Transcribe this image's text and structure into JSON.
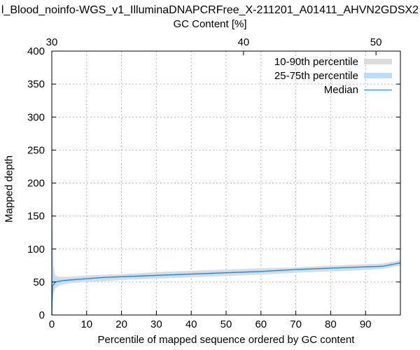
{
  "chart_data": {
    "type": "area",
    "title": "l_Blood_noinfo-WGS_v1_IlluminaDNAPCRFree_X-211201_A01411_AHVN2GDSX2",
    "xlabel": "Percentile of mapped sequence ordered by GC content",
    "ylabel": "Mapped depth",
    "x2label": "GC Content [%]",
    "xlim": [
      0,
      100
    ],
    "ylim": [
      0,
      400
    ],
    "xticks": [
      0,
      10,
      20,
      30,
      40,
      50,
      60,
      70,
      80,
      90
    ],
    "yticks": [
      0,
      50,
      100,
      150,
      200,
      250,
      300,
      350,
      400
    ],
    "x2ticks": [
      {
        "label": "30",
        "x": 0
      },
      {
        "label": "40",
        "x": 55
      },
      {
        "label": "50",
        "x": 93
      }
    ],
    "grid": true,
    "legend": "top-right",
    "colors": {
      "p10_90": "#dcdcdc",
      "p25_75": "#b8dcfa",
      "median": "#1a88e6"
    },
    "x": [
      0,
      0.2,
      0.5,
      1,
      2,
      3,
      5,
      10,
      15,
      20,
      30,
      40,
      50,
      60,
      70,
      80,
      85,
      90,
      95,
      97,
      100
    ],
    "series": [
      {
        "name": "10-90th percentile",
        "lower": [
          0,
          20,
          32,
          40,
          44,
          46,
          48,
          50,
          51,
          53,
          55,
          57,
          59,
          61,
          64,
          66,
          67,
          68,
          70,
          72,
          75
        ],
        "upper": [
          250,
          200,
          75,
          60,
          58,
          58,
          58,
          60,
          61,
          62,
          65,
          67,
          69,
          71,
          72,
          75,
          76,
          77,
          78,
          80,
          83
        ]
      },
      {
        "name": "25-75th percentile",
        "lower": [
          0,
          35,
          40,
          45,
          48,
          50,
          51,
          53,
          55,
          56,
          58,
          61,
          63,
          65,
          67,
          69,
          70,
          71,
          72,
          74,
          77
        ],
        "upper": [
          180,
          120,
          60,
          55,
          54,
          54,
          55,
          57,
          58,
          60,
          62,
          64,
          66,
          68,
          70,
          72,
          73,
          74,
          76,
          78,
          81
        ]
      },
      {
        "name": "Median",
        "values": [
          0,
          45,
          46,
          50,
          51,
          52,
          53,
          55,
          57,
          58,
          60,
          62,
          64,
          66,
          69,
          71,
          72,
          73,
          74,
          76,
          79
        ]
      }
    ]
  }
}
